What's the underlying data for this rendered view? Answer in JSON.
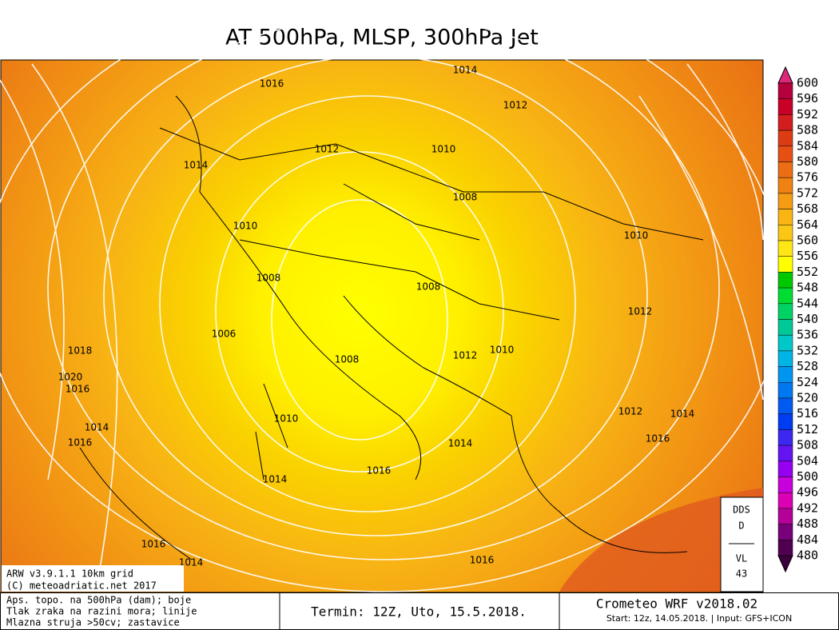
{
  "title": "AT 500hPa, MLSP, 300hPa Jet",
  "isobar_labels": [
    "1016",
    "1014",
    "1012",
    "1012",
    "1010",
    "1014",
    "1008",
    "1010",
    "1010",
    "1008",
    "1008",
    "1012",
    "1006",
    "1018",
    "1008",
    "1012",
    "1010",
    "1020",
    "1016",
    "1010",
    "1012",
    "1014",
    "1014",
    "1016",
    "1014",
    "1016",
    "1016",
    "1014",
    "1016",
    "1014",
    "1016"
  ],
  "legend": {
    "levels": [
      "600",
      "596",
      "592",
      "588",
      "584",
      "580",
      "576",
      "572",
      "568",
      "564",
      "560",
      "556",
      "552",
      "548",
      "544",
      "540",
      "536",
      "532",
      "528",
      "524",
      "520",
      "516",
      "512",
      "508",
      "504",
      "500",
      "496",
      "492",
      "488",
      "484",
      "480"
    ],
    "colors": [
      "#b4003c",
      "#c80028",
      "#d21e1e",
      "#dc3c14",
      "#e65014",
      "#eb6e14",
      "#f08214",
      "#f59b14",
      "#fab414",
      "#fac814",
      "#ffe614",
      "#ffff00",
      "#00c800",
      "#00dc32",
      "#00d264",
      "#00c896",
      "#00c8c8",
      "#00b4e6",
      "#0096f0",
      "#0078f0",
      "#005af0",
      "#003cf0",
      "#3c28f0",
      "#6414f0",
      "#9600f0",
      "#c800dc",
      "#dc00b4",
      "#b40096",
      "#780078",
      "#500050"
    ],
    "top_color": "#dc2878",
    "bottom_color": "#3c003c"
  },
  "side_box": {
    "line1": "DDS",
    "line2": "D",
    "line3": "VL",
    "line4": "43"
  },
  "model_box": {
    "line1": "ARW v3.9.1.1 10km grid",
    "line2": "(C) meteoadriatic.net 2017"
  },
  "footer": {
    "left": [
      "Aps. topo. na 500hPa (dam); boje",
      "Tlak zraka na razini mora; linije",
      "Mlazna struja >50cv; zastavice"
    ],
    "middle": "Termin: 12Z, Uto, 15.5.2018.",
    "right_title": "Crometeo WRF v2018.02",
    "right_sub": "Start: 12z, 14.05.2018. | Input: GFS+ICON"
  }
}
